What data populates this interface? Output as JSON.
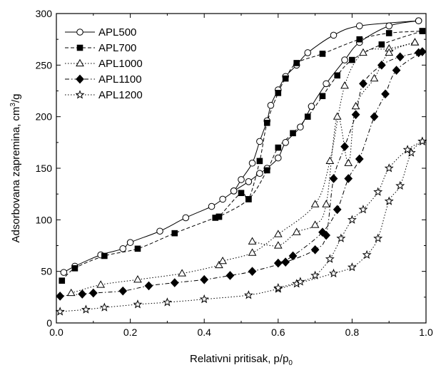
{
  "chart_data": {
    "type": "line",
    "title": "",
    "xlabel": "Relativni pritisak, p/p",
    "xlabel_sub": "0",
    "ylabel_main": "Adsorbovana zapremina, cm",
    "ylabel_sup": "3",
    "ylabel_end": "/g",
    "xlim": [
      0.0,
      1.0
    ],
    "ylim": [
      0,
      300
    ],
    "x_ticks": [
      "0.0",
      "0.2",
      "0.4",
      "0.6",
      "0.8",
      "1.0"
    ],
    "y_ticks": [
      "0",
      "50",
      "100",
      "150",
      "200",
      "250",
      "300"
    ],
    "grid": false,
    "legend_position": "top-left",
    "series": [
      {
        "name": "APL500",
        "marker": "circle-open",
        "line": "solid",
        "adsorption": [
          [
            0.02,
            49
          ],
          [
            0.05,
            55
          ],
          [
            0.12,
            66
          ],
          [
            0.18,
            72
          ],
          [
            0.2,
            78
          ],
          [
            0.28,
            89
          ],
          [
            0.35,
            102
          ],
          [
            0.42,
            113
          ],
          [
            0.45,
            120
          ],
          [
            0.48,
            128
          ],
          [
            0.5,
            139
          ],
          [
            0.53,
            155
          ],
          [
            0.55,
            176
          ],
          [
            0.57,
            196
          ],
          [
            0.58,
            211
          ],
          [
            0.6,
            226
          ],
          [
            0.62,
            239
          ],
          [
            0.65,
            250
          ],
          [
            0.68,
            262
          ],
          [
            0.75,
            279
          ],
          [
            0.82,
            288
          ],
          [
            0.98,
            293
          ]
        ],
        "desorption": [
          [
            0.98,
            293
          ],
          [
            0.9,
            288
          ],
          [
            0.82,
            272
          ],
          [
            0.78,
            255
          ],
          [
            0.73,
            232
          ],
          [
            0.69,
            210
          ],
          [
            0.66,
            190
          ],
          [
            0.62,
            175
          ],
          [
            0.6,
            160
          ],
          [
            0.57,
            150
          ],
          [
            0.55,
            145
          ],
          [
            0.52,
            137
          ],
          [
            0.48,
            128
          ]
        ]
      },
      {
        "name": "APL700",
        "marker": "square-filled",
        "line": "dashed",
        "adsorption": [
          [
            0.015,
            41
          ],
          [
            0.05,
            53
          ],
          [
            0.13,
            65
          ],
          [
            0.22,
            72
          ],
          [
            0.32,
            87
          ],
          [
            0.43,
            102
          ],
          [
            0.44,
            103
          ],
          [
            0.5,
            126
          ],
          [
            0.52,
            120
          ],
          [
            0.55,
            157
          ],
          [
            0.57,
            194
          ],
          [
            0.6,
            223
          ],
          [
            0.62,
            237
          ],
          [
            0.65,
            252
          ],
          [
            0.72,
            261
          ],
          [
            0.82,
            275
          ],
          [
            0.9,
            281
          ],
          [
            0.99,
            283
          ]
        ],
        "desorption": [
          [
            0.99,
            283
          ],
          [
            0.88,
            270
          ],
          [
            0.8,
            255
          ],
          [
            0.76,
            240
          ],
          [
            0.72,
            220
          ],
          [
            0.68,
            200
          ],
          [
            0.64,
            184
          ],
          [
            0.6,
            170
          ],
          [
            0.57,
            148
          ],
          [
            0.52,
            120
          ],
          [
            0.44,
            103
          ]
        ]
      },
      {
        "name": "APL1000",
        "marker": "triangle-open",
        "line": "dotted",
        "adsorption": [
          [
            0.04,
            29
          ],
          [
            0.12,
            37
          ],
          [
            0.22,
            42
          ],
          [
            0.34,
            48
          ],
          [
            0.44,
            56
          ],
          [
            0.45,
            60
          ],
          [
            0.53,
            68
          ],
          [
            0.6,
            86
          ],
          [
            0.7,
            115
          ],
          [
            0.74,
            157
          ],
          [
            0.78,
            230
          ],
          [
            0.83,
            262
          ],
          [
            0.9,
            266
          ],
          [
            0.97,
            272
          ]
        ],
        "desorption": [
          [
            0.97,
            272
          ],
          [
            0.9,
            262
          ],
          [
            0.86,
            237
          ],
          [
            0.81,
            210
          ],
          [
            0.79,
            155
          ],
          [
            0.76,
            200
          ],
          [
            0.73,
            115
          ],
          [
            0.7,
            95
          ],
          [
            0.65,
            88
          ],
          [
            0.6,
            75
          ],
          [
            0.53,
            79
          ]
        ]
      },
      {
        "name": "APL1100",
        "marker": "diamond-filled",
        "line": "dashdot",
        "adsorption": [
          [
            0.01,
            26
          ],
          [
            0.07,
            28
          ],
          [
            0.1,
            29
          ],
          [
            0.18,
            31
          ],
          [
            0.25,
            36
          ],
          [
            0.32,
            39
          ],
          [
            0.4,
            42
          ],
          [
            0.47,
            46
          ],
          [
            0.53,
            50
          ],
          [
            0.62,
            59
          ],
          [
            0.7,
            71
          ],
          [
            0.73,
            85
          ],
          [
            0.75,
            140
          ],
          [
            0.78,
            171
          ],
          [
            0.81,
            202
          ],
          [
            0.83,
            232
          ],
          [
            0.88,
            250
          ],
          [
            0.93,
            258
          ],
          [
            0.98,
            262
          ]
        ],
        "desorption": [
          [
            0.99,
            263
          ],
          [
            0.92,
            245
          ],
          [
            0.89,
            222
          ],
          [
            0.86,
            200
          ],
          [
            0.82,
            159
          ],
          [
            0.79,
            140
          ],
          [
            0.76,
            110
          ],
          [
            0.72,
            88
          ],
          [
            0.64,
            65
          ],
          [
            0.6,
            58
          ]
        ]
      },
      {
        "name": "APL1200",
        "marker": "star-open",
        "line": "dotted",
        "adsorption": [
          [
            0.01,
            11
          ],
          [
            0.08,
            13
          ],
          [
            0.13,
            15
          ],
          [
            0.22,
            18
          ],
          [
            0.3,
            20
          ],
          [
            0.4,
            23
          ],
          [
            0.52,
            27
          ],
          [
            0.6,
            33
          ],
          [
            0.65,
            38
          ],
          [
            0.75,
            48
          ],
          [
            0.8,
            54
          ],
          [
            0.84,
            66
          ],
          [
            0.87,
            82
          ],
          [
            0.9,
            118
          ],
          [
            0.93,
            133
          ],
          [
            0.96,
            165
          ],
          [
            0.99,
            176
          ]
        ],
        "desorption": [
          [
            0.99,
            176
          ],
          [
            0.95,
            168
          ],
          [
            0.9,
            150
          ],
          [
            0.87,
            127
          ],
          [
            0.83,
            110
          ],
          [
            0.8,
            100
          ],
          [
            0.77,
            82
          ],
          [
            0.74,
            62
          ],
          [
            0.7,
            46
          ],
          [
            0.66,
            40
          ],
          [
            0.6,
            34
          ]
        ]
      }
    ]
  }
}
